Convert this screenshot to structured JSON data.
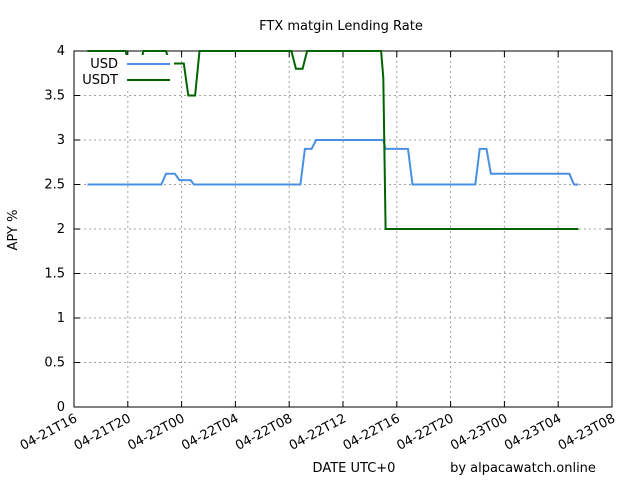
{
  "chart_data": {
    "type": "line",
    "title": "FTX matgin Lending Rate",
    "xlabel": "DATE UTC+0",
    "ylabel": "APY %",
    "credit": "by alpacawatch.online",
    "x_unit": "hours",
    "xlim": [
      "04-21T16",
      "04-23T08"
    ],
    "ylim": [
      0,
      4
    ],
    "grid": true,
    "legend_position": "top-left",
    "x_ticks": [
      "04-21T16",
      "04-21T20",
      "04-22T00",
      "04-22T04",
      "04-22T08",
      "04-22T12",
      "04-22T16",
      "04-22T20",
      "04-23T00",
      "04-23T04",
      "04-23T08"
    ],
    "y_ticks": [
      "0",
      "0.5",
      "1",
      "1.5",
      "2",
      "2.5",
      "3",
      "3.5",
      "4"
    ],
    "series": [
      {
        "name": "USD",
        "color": "#4a90e2",
        "x": [
          "04-21T17:00",
          "04-21T22:30",
          "04-21T22:50",
          "04-21T23:30",
          "04-21T23:50",
          "04-22T00:40",
          "04-22T00:55",
          "04-22T08:50",
          "04-22T09:10",
          "04-22T09:40",
          "04-22T10:00",
          "04-22T15:00",
          "04-22T15:10",
          "04-22T16:50",
          "04-22T17:10",
          "04-22T21:50",
          "04-22T22:10",
          "04-22T22:40",
          "04-22T23:00",
          "04-23T04:50",
          "04-23T05:10",
          "04-23T05:30"
        ],
        "values": [
          2.5,
          2.5,
          2.62,
          2.62,
          2.55,
          2.55,
          2.5,
          2.5,
          2.9,
          2.9,
          3.0,
          3.0,
          2.9,
          2.9,
          2.5,
          2.5,
          2.9,
          2.9,
          2.62,
          2.62,
          2.5,
          2.5
        ]
      },
      {
        "name": "USDT",
        "color": "#006400",
        "x": [
          "04-21T17:00",
          "04-21T19:50",
          "04-21T20:10",
          "04-21T20:50",
          "04-21T21:10",
          "04-21T22:50",
          "04-21T23:10",
          "04-22T00:10",
          "04-22T00:30",
          "04-22T01:00",
          "04-22T01:20",
          "04-22T08:10",
          "04-22T08:30",
          "04-22T09:00",
          "04-22T09:20",
          "04-22T14:50",
          "04-22T15:00",
          "04-22T15:10",
          "04-23T05:30"
        ],
        "values": [
          4.0,
          4.0,
          3.8,
          3.8,
          4.0,
          4.0,
          3.86,
          3.86,
          3.5,
          3.5,
          4.0,
          4.0,
          3.8,
          3.8,
          4.0,
          4.0,
          3.7,
          2.0,
          2.0
        ]
      }
    ]
  }
}
